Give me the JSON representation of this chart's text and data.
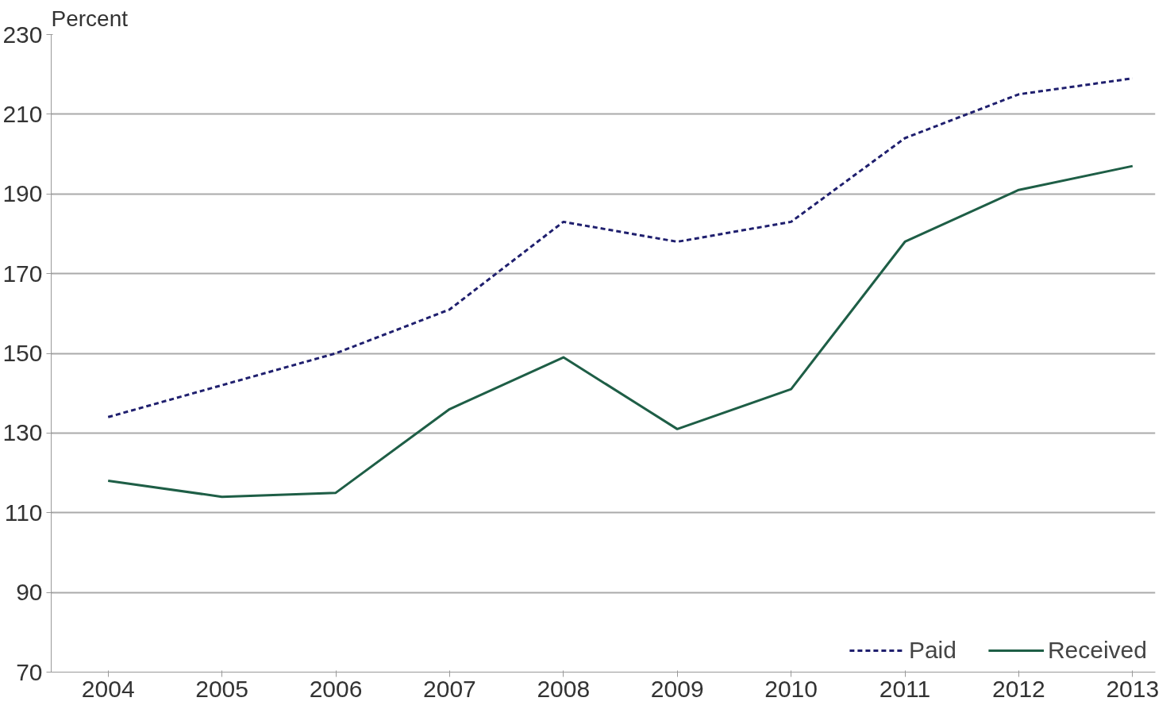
{
  "chart_data": {
    "type": "line",
    "ylabel": "Percent",
    "categories": [
      "2004",
      "2005",
      "2006",
      "2007",
      "2008",
      "2009",
      "2010",
      "2011",
      "2012",
      "2013"
    ],
    "series": [
      {
        "name": "Paid",
        "color": "#1f1f6e",
        "line_style": "dashed",
        "values": [
          134,
          142,
          150,
          161,
          183,
          178,
          183,
          204,
          215,
          219
        ]
      },
      {
        "name": "Received",
        "color": "#1e5e46",
        "line_style": "solid",
        "values": [
          118,
          114,
          115,
          136,
          149,
          131,
          141,
          178,
          191,
          197
        ]
      }
    ],
    "ylim": [
      70,
      230
    ],
    "yticks": [
      70,
      90,
      110,
      130,
      150,
      170,
      190,
      210,
      230
    ],
    "grid": "y",
    "legend": "bottom right",
    "marker": "none"
  }
}
